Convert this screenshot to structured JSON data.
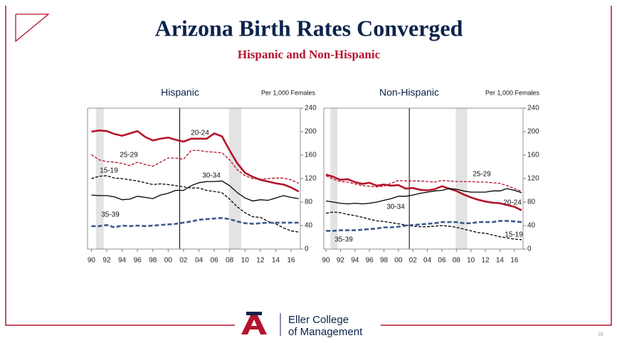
{
  "slide": {
    "title": "Arizona Birth Rates Converged",
    "subtitle": "Hispanic and Non-Hispanic",
    "logo": [
      "Eller College",
      "of Management"
    ],
    "page_number": "18"
  },
  "chart_data": [
    {
      "type": "line",
      "title": "Hispanic",
      "y_label": "Per 1,000 Females",
      "x": [
        1990,
        1991,
        1992,
        1993,
        1994,
        1995,
        1996,
        1997,
        1998,
        1999,
        2000,
        2001,
        2002,
        2003,
        2004,
        2005,
        2006,
        2007,
        2008,
        2009,
        2010,
        2011,
        2012,
        2013,
        2014,
        2015,
        2016,
        2017
      ],
      "xlim": [
        1989.5,
        2017.2
      ],
      "xticks": [
        {
          "value": 1990,
          "label": "90"
        },
        {
          "value": 1992,
          "label": "92"
        },
        {
          "value": 1994,
          "label": "94"
        },
        {
          "value": 1996,
          "label": "96"
        },
        {
          "value": 1998,
          "label": "98"
        },
        {
          "value": 2000,
          "label": "00"
        },
        {
          "value": 2002,
          "label": "02"
        },
        {
          "value": 2004,
          "label": "04"
        },
        {
          "value": 2006,
          "label": "06"
        },
        {
          "value": 2008,
          "label": "08"
        },
        {
          "value": 2010,
          "label": "10"
        },
        {
          "value": 2012,
          "label": "12"
        },
        {
          "value": 2014,
          "label": "14"
        },
        {
          "value": 2016,
          "label": "16"
        }
      ],
      "ylim": [
        0,
        240
      ],
      "yticks": [
        0,
        40,
        80,
        120,
        160,
        200,
        240
      ],
      "shaded_ranges": [
        [
          1990.6,
          1991.6
        ],
        [
          2007.9,
          2009.5
        ]
      ],
      "vline": 2001.5,
      "series": [
        {
          "name": "15-19",
          "color": "#000000",
          "dash": true,
          "width": 1.3,
          "values": [
            120,
            124,
            125,
            121,
            120,
            118,
            116,
            113,
            110,
            111,
            110,
            108,
            106,
            104,
            104,
            100,
            98,
            96,
            85,
            72,
            62,
            55,
            54,
            47,
            43,
            36,
            31,
            29
          ]
        },
        {
          "name": "20-24",
          "color": "#b5132d",
          "dash": false,
          "width": 2.6,
          "values": [
            200,
            202,
            201,
            196,
            193,
            197,
            201,
            191,
            185,
            188,
            190,
            186,
            183,
            188,
            188,
            188,
            197,
            192,
            168,
            146,
            130,
            123,
            118,
            115,
            112,
            110,
            105,
            98
          ]
        },
        {
          "name": "25-29",
          "color": "#b5132d",
          "dash": true,
          "width": 1.3,
          "values": [
            161,
            152,
            149,
            148,
            146,
            142,
            148,
            144,
            141,
            148,
            155,
            155,
            153,
            168,
            168,
            166,
            165,
            164,
            152,
            135,
            125,
            120,
            119,
            120,
            121,
            121,
            118,
            112
          ]
        },
        {
          "name": "30-34",
          "color": "#000000",
          "dash": false,
          "width": 1.3,
          "values": [
            92,
            91,
            91,
            89,
            84,
            85,
            90,
            88,
            86,
            92,
            95,
            100,
            100,
            108,
            113,
            115,
            115,
            116,
            108,
            96,
            87,
            82,
            84,
            83,
            87,
            91,
            88,
            86
          ]
        },
        {
          "name": "35-39",
          "color": "#3b5a8c",
          "dash": true,
          "width": 2.6,
          "values": [
            39,
            39,
            41,
            37,
            40,
            39,
            40,
            39,
            40,
            41,
            42,
            43,
            45,
            47,
            50,
            51,
            52,
            53,
            51,
            47,
            44,
            43,
            44,
            45,
            45,
            45,
            45,
            45
          ]
        }
      ]
    },
    {
      "type": "line",
      "title": "Non-Hispanic",
      "y_label": "Per 1,000 Females",
      "x": [
        1990,
        1991,
        1992,
        1993,
        1994,
        1995,
        1996,
        1997,
        1998,
        1999,
        2000,
        2001,
        2002,
        2003,
        2004,
        2005,
        2006,
        2007,
        2008,
        2009,
        2010,
        2011,
        2012,
        2013,
        2014,
        2015,
        2016,
        2017
      ],
      "xlim": [
        1989.7,
        2017.2
      ],
      "xticks": [
        {
          "value": 1990,
          "label": "90"
        },
        {
          "value": 1992,
          "label": "92"
        },
        {
          "value": 1994,
          "label": "94"
        },
        {
          "value": 1996,
          "label": "96"
        },
        {
          "value": 1998,
          "label": "98"
        },
        {
          "value": 2000,
          "label": "00"
        },
        {
          "value": 2002,
          "label": "02"
        },
        {
          "value": 2004,
          "label": "04"
        },
        {
          "value": 2006,
          "label": "06"
        },
        {
          "value": 2008,
          "label": "08"
        },
        {
          "value": 2010,
          "label": "10"
        },
        {
          "value": 2012,
          "label": "12"
        },
        {
          "value": 2014,
          "label": "14"
        },
        {
          "value": 2016,
          "label": "16"
        }
      ],
      "ylim": [
        0,
        240
      ],
      "yticks": [
        0,
        40,
        80,
        120,
        160,
        200,
        240
      ],
      "shaded_ranges": [
        [
          1990.6,
          1991.6
        ],
        [
          2007.9,
          2009.5
        ]
      ],
      "vline": 2001.5,
      "series": [
        {
          "name": "15-19",
          "color": "#000000",
          "dash": true,
          "width": 1.3,
          "values": [
            61,
            63,
            62,
            59,
            57,
            54,
            51,
            48,
            47,
            45,
            43,
            41,
            39,
            38,
            38,
            39,
            40,
            39,
            37,
            34,
            31,
            28,
            27,
            24,
            21,
            19,
            17,
            16
          ]
        },
        {
          "name": "20-24",
          "color": "#b5132d",
          "dash": false,
          "width": 2.6,
          "values": [
            127,
            123,
            118,
            119,
            114,
            111,
            113,
            108,
            110,
            108,
            109,
            103,
            104,
            101,
            100,
            102,
            107,
            103,
            99,
            93,
            88,
            84,
            81,
            79,
            78,
            75,
            72,
            66
          ]
        },
        {
          "name": "25-29",
          "color": "#b5132d",
          "dash": true,
          "width": 1.3,
          "values": [
            125,
            119,
            115,
            114,
            111,
            108,
            107,
            106,
            107,
            112,
            117,
            116,
            116,
            116,
            115,
            114,
            117,
            116,
            115,
            115,
            115,
            114,
            114,
            113,
            112,
            108,
            103,
            98
          ]
        },
        {
          "name": "30-34",
          "color": "#000000",
          "dash": false,
          "width": 1.3,
          "values": [
            82,
            80,
            78,
            77,
            78,
            77,
            78,
            80,
            83,
            86,
            90,
            90,
            92,
            95,
            97,
            99,
            100,
            103,
            102,
            99,
            97,
            97,
            97,
            99,
            99,
            103,
            100,
            96
          ]
        },
        {
          "name": "35-39",
          "color": "#3b5a8c",
          "dash": true,
          "width": 2.6,
          "values": [
            31,
            31,
            32,
            32,
            32,
            33,
            34,
            35,
            37,
            37,
            38,
            40,
            41,
            42,
            43,
            44,
            46,
            46,
            46,
            44,
            44,
            46,
            46,
            46,
            48,
            48,
            47,
            46
          ]
        }
      ]
    }
  ]
}
